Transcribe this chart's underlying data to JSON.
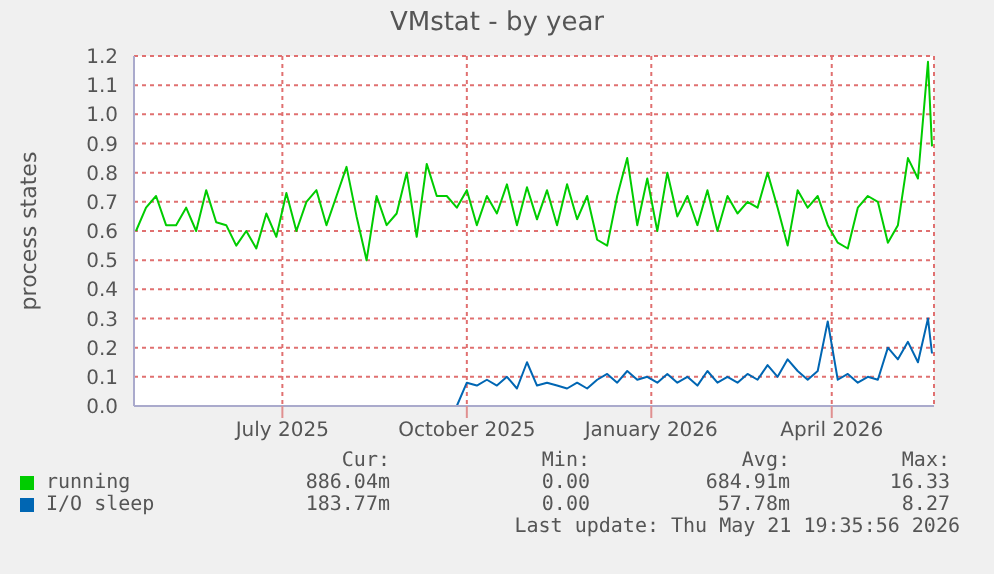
{
  "chart_data": {
    "type": "line",
    "title": "VMstat - by year",
    "ylabel": "process states",
    "x": [
      "2025-04-19",
      "2025-04-24",
      "2025-04-29",
      "2025-05-04",
      "2025-05-09",
      "2025-05-14",
      "2025-05-19",
      "2025-05-24",
      "2025-05-29",
      "2025-06-03",
      "2025-06-08",
      "2025-06-13",
      "2025-06-18",
      "2025-06-23",
      "2025-06-28",
      "2025-07-03",
      "2025-07-08",
      "2025-07-13",
      "2025-07-18",
      "2025-07-23",
      "2025-07-28",
      "2025-08-02",
      "2025-08-07",
      "2025-08-12",
      "2025-08-17",
      "2025-08-22",
      "2025-08-27",
      "2025-09-01",
      "2025-09-06",
      "2025-09-11",
      "2025-09-16",
      "2025-09-21",
      "2025-09-26",
      "2025-10-01",
      "2025-10-06",
      "2025-10-11",
      "2025-10-16",
      "2025-10-21",
      "2025-10-26",
      "2025-10-31",
      "2025-11-05",
      "2025-11-10",
      "2025-11-15",
      "2025-11-20",
      "2025-11-25",
      "2025-11-30",
      "2025-12-05",
      "2025-12-10",
      "2025-12-15",
      "2025-12-20",
      "2025-12-25",
      "2025-12-30",
      "2026-01-04",
      "2026-01-09",
      "2026-01-14",
      "2026-01-19",
      "2026-01-24",
      "2026-01-29",
      "2026-02-03",
      "2026-02-08",
      "2026-02-13",
      "2026-02-18",
      "2026-02-23",
      "2026-02-28",
      "2026-03-05",
      "2026-03-10",
      "2026-03-15",
      "2026-03-20",
      "2026-03-25",
      "2026-03-30",
      "2026-04-04",
      "2026-04-09",
      "2026-04-14",
      "2026-04-19",
      "2026-04-24",
      "2026-04-29",
      "2026-05-04",
      "2026-05-09",
      "2026-05-14",
      "2026-05-19",
      "2026-05-21"
    ],
    "series": [
      {
        "name": "running",
        "color": "#00cc00",
        "values": [
          0.6,
          0.68,
          0.72,
          0.62,
          0.62,
          0.68,
          0.6,
          0.74,
          0.63,
          0.62,
          0.55,
          0.6,
          0.54,
          0.66,
          0.58,
          0.73,
          0.6,
          0.7,
          0.74,
          0.62,
          0.72,
          0.82,
          0.65,
          0.5,
          0.72,
          0.62,
          0.66,
          0.8,
          0.58,
          0.83,
          0.72,
          0.72,
          0.68,
          0.74,
          0.62,
          0.72,
          0.66,
          0.76,
          0.62,
          0.75,
          0.64,
          0.74,
          0.62,
          0.76,
          0.64,
          0.72,
          0.57,
          0.55,
          0.72,
          0.85,
          0.62,
          0.78,
          0.6,
          0.8,
          0.65,
          0.72,
          0.62,
          0.74,
          0.6,
          0.72,
          0.66,
          0.7,
          0.68,
          0.8,
          0.68,
          0.55,
          0.74,
          0.68,
          0.72,
          0.62,
          0.56,
          0.54,
          0.68,
          0.72,
          0.7,
          0.56,
          0.62,
          0.85,
          0.78,
          1.18,
          0.89
        ]
      },
      {
        "name": "I/O sleep",
        "color": "#0066b3",
        "values": [
          0,
          0,
          0,
          0,
          0,
          0,
          0,
          0,
          0,
          0,
          0,
          0,
          0,
          0,
          0,
          0,
          0,
          0,
          0,
          0,
          0,
          0,
          0,
          0,
          0,
          0,
          0,
          0,
          0,
          0,
          0,
          0,
          0,
          0.08,
          0.07,
          0.09,
          0.07,
          0.1,
          0.06,
          0.15,
          0.07,
          0.08,
          0.07,
          0.06,
          0.08,
          0.06,
          0.09,
          0.11,
          0.08,
          0.12,
          0.09,
          0.1,
          0.08,
          0.11,
          0.08,
          0.1,
          0.07,
          0.12,
          0.08,
          0.1,
          0.08,
          0.11,
          0.09,
          0.14,
          0.1,
          0.16,
          0.12,
          0.09,
          0.12,
          0.29,
          0.09,
          0.11,
          0.08,
          0.1,
          0.09,
          0.2,
          0.16,
          0.22,
          0.15,
          0.3,
          0.18
        ]
      }
    ],
    "xlim": [
      "2025-04-18",
      "2026-05-22"
    ],
    "xticks": [
      {
        "value": "2025-07-01",
        "label": "July 2025"
      },
      {
        "value": "2025-10-01",
        "label": "October 2025"
      },
      {
        "value": "2026-01-01",
        "label": "January 2026"
      },
      {
        "value": "2026-04-01",
        "label": "April 2026"
      }
    ],
    "ylim": [
      0,
      1.2
    ],
    "yticks": [
      {
        "value": 0,
        "label": "0.0"
      },
      {
        "value": 0.1,
        "label": "0.1"
      },
      {
        "value": 0.2,
        "label": "0.2"
      },
      {
        "value": 0.3,
        "label": "0.3"
      },
      {
        "value": 0.4,
        "label": "0.4"
      },
      {
        "value": 0.5,
        "label": "0.5"
      },
      {
        "value": 0.6,
        "label": "0.6"
      },
      {
        "value": 0.7,
        "label": "0.7"
      },
      {
        "value": 0.8,
        "label": "0.8"
      },
      {
        "value": 0.9,
        "label": "0.9"
      },
      {
        "value": 1.0,
        "label": "1.0"
      },
      {
        "value": 1.1,
        "label": "1.1"
      },
      {
        "value": 1.2,
        "label": "1.2"
      }
    ],
    "grid": true,
    "legend": "bottom",
    "annotations": [
      "Cur:",
      "Min:",
      "Avg:",
      "Max:",
      "886.04m",
      "0.00",
      "684.91m",
      "16.33",
      "183.77m",
      "0.00",
      "57.78m",
      "8.27",
      "Last update: Thu May 21 19:35:56 2026"
    ]
  }
}
